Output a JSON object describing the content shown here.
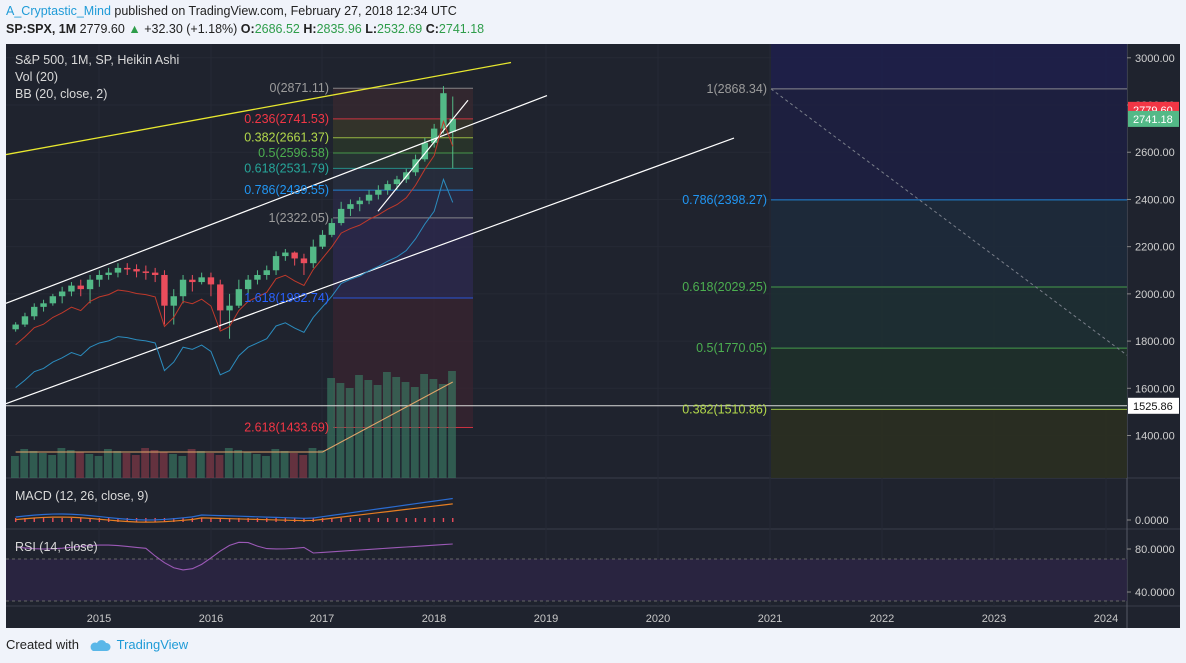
{
  "header": {
    "author": "A_Cryptastic_Mind",
    "published_text": "published on TradingView.com, February 27, 2018 12:34 UTC",
    "symbol": "SP:SPX, 1M",
    "last": "2779.60",
    "change": "+32.30 (+1.18%)",
    "o_label": "O:",
    "o": "2686.52",
    "h_label": "H:",
    "h": "2835.96",
    "l_label": "L:",
    "l": "2532.69",
    "c_label": "C:",
    "c": "2741.18"
  },
  "legend": {
    "title": "S&P 500, 1M, SP, Heikin Ashi",
    "vol": "Vol (20)",
    "bb": "BB (20, close, 2)",
    "macd": "MACD (12, 26, close, 9)",
    "rsi": "RSI (14, close)"
  },
  "footer": {
    "created_with": "Created with",
    "brand": "TradingView"
  },
  "colors": {
    "bg": "#1f232e",
    "up": "#53b987",
    "down": "#eb4d5c",
    "fib_0": "#9c9c9c",
    "fib_236": "#f23645",
    "fib_382": "#b2d84a",
    "fib_5": "#4caf50",
    "fib_618": "#26a69a",
    "fib_786": "#2196f3",
    "fib_1": "#9c9c9c",
    "fib_1618": "#2962ff",
    "fib_2618": "#f23645",
    "trend_yellow": "#e8e82e",
    "bb_basis": "#c0392b",
    "bb_band": "#2b8cbe",
    "macd": "#2b6cd1",
    "signal": "#e67e22",
    "rsi": "#9b59b6"
  },
  "chart_data": {
    "type": "candlestick",
    "title": "S&P 500, 1M, SP, Heikin Ashi",
    "x_ticks": [
      "2015",
      "2016",
      "2017",
      "2018",
      "2019",
      "2020",
      "2021",
      "2022",
      "2023",
      "2024"
    ],
    "price_ticks": [
      "3000.00",
      "2800.00",
      "2600.00",
      "2400.00",
      "2200.00",
      "2000.00",
      "1800.00",
      "1600.00",
      "1400.00"
    ],
    "ylim": [
      1220,
      3050
    ],
    "price_labels": [
      {
        "text": "2779.60",
        "value": 2779.6,
        "color": "#f23645"
      },
      {
        "text": "2741.18",
        "value": 2741.18,
        "color": "#53b987"
      },
      {
        "text": "1525.86",
        "value": 1525.86,
        "color": "#ffffff"
      }
    ],
    "candles_approx": [
      [
        1850,
        1880,
        1840,
        1870
      ],
      [
        1870,
        1920,
        1860,
        1905
      ],
      [
        1905,
        1960,
        1890,
        1945
      ],
      [
        1945,
        1975,
        1925,
        1960
      ],
      [
        1960,
        2000,
        1950,
        1990
      ],
      [
        1990,
        2030,
        1960,
        2010
      ],
      [
        2010,
        2050,
        1990,
        2035
      ],
      [
        2035,
        2060,
        1990,
        2020
      ],
      [
        2020,
        2080,
        1960,
        2060
      ],
      [
        2060,
        2100,
        2030,
        2080
      ],
      [
        2080,
        2110,
        2060,
        2090
      ],
      [
        2090,
        2130,
        2070,
        2110
      ],
      [
        2110,
        2130,
        2080,
        2105
      ],
      [
        2105,
        2125,
        2070,
        2095
      ],
      [
        2095,
        2120,
        2060,
        2090
      ],
      [
        2090,
        2110,
        2050,
        2080
      ],
      [
        2080,
        2100,
        1870,
        1950
      ],
      [
        1950,
        2020,
        1870,
        1990
      ],
      [
        1990,
        2080,
        1960,
        2060
      ],
      [
        2060,
        2080,
        2010,
        2050
      ],
      [
        2050,
        2090,
        2040,
        2070
      ],
      [
        2070,
        2090,
        1990,
        2040
      ],
      [
        2040,
        2060,
        1850,
        1930
      ],
      [
        1930,
        2000,
        1810,
        1950
      ],
      [
        1950,
        2060,
        1940,
        2020
      ],
      [
        2020,
        2080,
        2000,
        2060
      ],
      [
        2060,
        2100,
        2040,
        2080
      ],
      [
        2080,
        2120,
        2060,
        2100
      ],
      [
        2100,
        2180,
        2080,
        2160
      ],
      [
        2160,
        2190,
        2140,
        2175
      ],
      [
        2175,
        2180,
        2120,
        2150
      ],
      [
        2150,
        2170,
        2080,
        2130
      ],
      [
        2130,
        2230,
        2110,
        2200
      ],
      [
        2200,
        2270,
        2190,
        2250
      ],
      [
        2250,
        2320,
        2240,
        2300
      ],
      [
        2300,
        2390,
        2290,
        2360
      ],
      [
        2360,
        2400,
        2330,
        2380
      ],
      [
        2380,
        2410,
        2350,
        2395
      ],
      [
        2395,
        2440,
        2380,
        2420
      ],
      [
        2420,
        2460,
        2400,
        2440
      ],
      [
        2440,
        2480,
        2420,
        2465
      ],
      [
        2465,
        2500,
        2440,
        2485
      ],
      [
        2485,
        2530,
        2470,
        2515
      ],
      [
        2515,
        2590,
        2500,
        2570
      ],
      [
        2570,
        2660,
        2560,
        2640
      ],
      [
        2640,
        2720,
        2620,
        2700
      ],
      [
        2700,
        2880,
        2680,
        2850
      ],
      [
        2686.52,
        2835.96,
        2532.69,
        2741.18
      ]
    ],
    "fib_retracement_left": [
      {
        "label": "0(2871.11)",
        "value": 2871.11,
        "color": "#9c9c9c"
      },
      {
        "label": "0.236(2741.53)",
        "value": 2741.53,
        "color": "#f23645"
      },
      {
        "label": "0.382(2661.37)",
        "value": 2661.37,
        "color": "#b2d84a"
      },
      {
        "label": "0.5(2596.58)",
        "value": 2596.58,
        "color": "#4caf50"
      },
      {
        "label": "0.618(2531.79)",
        "value": 2531.79,
        "color": "#26a69a"
      },
      {
        "label": "0.786(2439.55)",
        "value": 2439.55,
        "color": "#2196f3"
      },
      {
        "label": "1(2322.05)",
        "value": 2322.05,
        "color": "#9c9c9c"
      },
      {
        "label": "1.618(1982.74)",
        "value": 1982.74,
        "color": "#2962ff"
      },
      {
        "label": "2.618(1433.69)",
        "value": 1433.69,
        "color": "#f23645"
      }
    ],
    "fib_retracement_right": [
      {
        "label": "1(2868.34)",
        "value": 2868.34,
        "color": "#9c9c9c"
      },
      {
        "label": "0.786(2398.27)",
        "value": 2398.27,
        "color": "#2196f3"
      },
      {
        "label": "0.618(2029.25)",
        "value": 2029.25,
        "color": "#4caf50"
      },
      {
        "label": "0.5(1770.05)",
        "value": 1770.05,
        "color": "#4caf50"
      },
      {
        "label": "0.382(1510.86)",
        "value": 1510.86,
        "color": "#b2d84a"
      }
    ],
    "macd_ticks": [
      "0.0000"
    ],
    "rsi_ticks": [
      "80.0000",
      "40.0000"
    ]
  }
}
